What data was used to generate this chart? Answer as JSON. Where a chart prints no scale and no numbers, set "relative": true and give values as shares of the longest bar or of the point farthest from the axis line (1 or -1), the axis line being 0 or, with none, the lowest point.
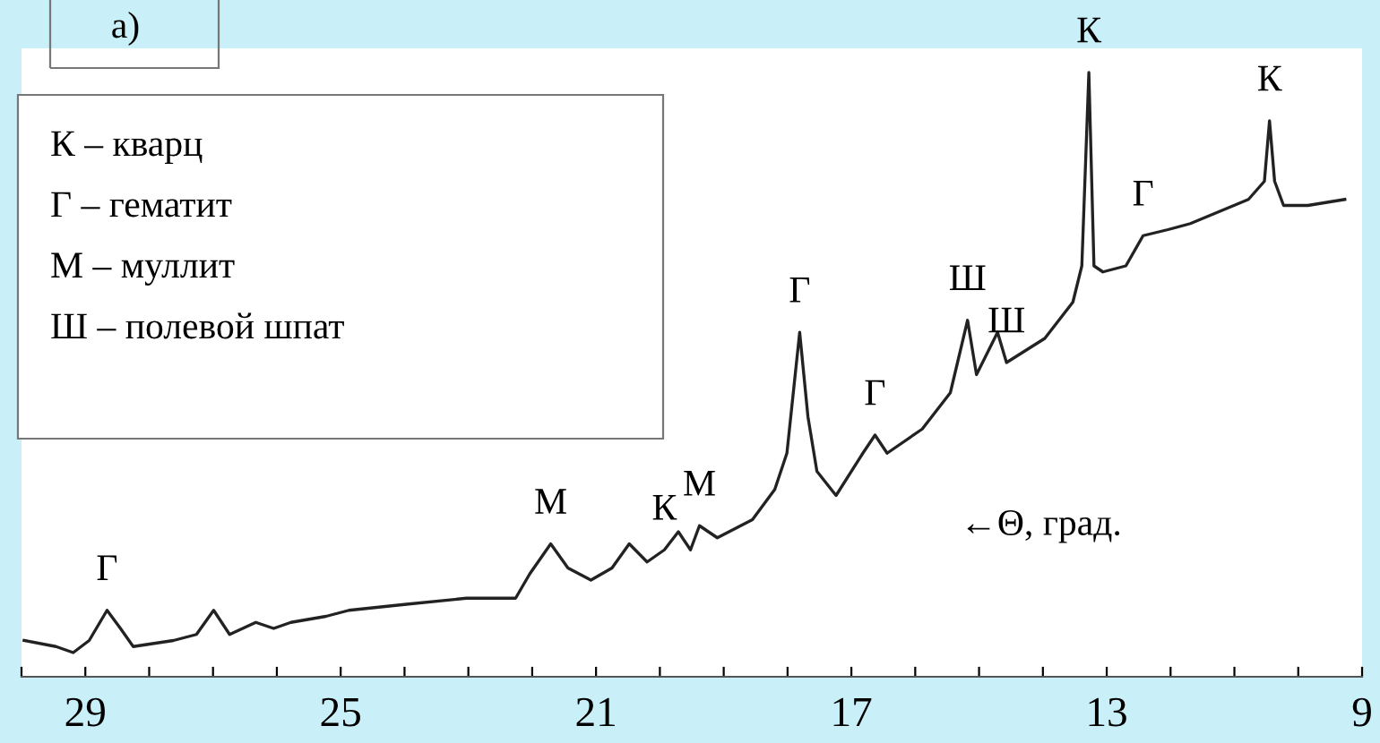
{
  "chart_data": {
    "type": "line",
    "relative": true,
    "xlabel": "←Θ, град.",
    "xlim": [
      30,
      9
    ],
    "xticks": [
      {
        "value": 30,
        "label": null
      },
      29,
      {
        "value": 28,
        "label": null
      },
      {
        "value": 27,
        "label": null
      },
      {
        "value": 26,
        "label": null
      },
      25,
      {
        "value": 24,
        "label": null
      },
      {
        "value": 23,
        "label": null
      },
      {
        "value": 22,
        "label": null
      },
      21,
      {
        "value": 20,
        "label": null
      },
      {
        "value": 19,
        "label": null
      },
      {
        "value": 18,
        "label": null
      },
      17,
      {
        "value": 16,
        "label": null
      },
      {
        "value": 15,
        "label": null
      },
      {
        "value": 14,
        "label": null
      },
      13,
      {
        "value": 12,
        "label": null
      },
      {
        "value": 11,
        "label": null
      },
      {
        "value": 10,
        "label": null
      },
      9
    ],
    "grid": false,
    "legend": false,
    "marker": "none",
    "line_style": "solid",
    "tick_labels": "x",
    "series": [
      {
        "color": "#222222",
        "x": [
          29.96,
          29.46,
          29.19,
          28.94,
          28.66,
          28.45,
          28.25,
          27.62,
          27.26,
          26.99,
          26.74,
          26.33,
          26.05,
          25.78,
          25.23,
          24.87,
          23.97,
          23.03,
          22.26,
          22.04,
          21.71,
          21.44,
          21.08,
          20.75,
          20.48,
          20.2,
          19.93,
          19.71,
          19.52,
          19.38,
          19.1,
          18.55,
          18.2,
          18.01,
          17.81,
          17.68,
          17.54,
          17.24,
          16.82,
          16.63,
          16.44,
          15.89,
          15.45,
          15.18,
          15.04,
          14.71,
          14.57,
          13.97,
          13.53,
          13.39,
          13.28,
          13.2,
          13.06,
          12.7,
          12.43,
          12.04,
          11.69,
          10.78,
          10.53,
          10.45,
          10.37,
          10.23,
          9.85,
          9.27
        ],
        "values": [
          0.06,
          0.05,
          0.04,
          0.06,
          0.11,
          0.08,
          0.05,
          0.06,
          0.07,
          0.11,
          0.07,
          0.09,
          0.08,
          0.09,
          0.1,
          0.11,
          0.12,
          0.13,
          0.13,
          0.17,
          0.22,
          0.18,
          0.16,
          0.18,
          0.22,
          0.19,
          0.21,
          0.24,
          0.21,
          0.25,
          0.23,
          0.26,
          0.31,
          0.37,
          0.57,
          0.43,
          0.34,
          0.3,
          0.37,
          0.4,
          0.37,
          0.41,
          0.47,
          0.59,
          0.5,
          0.57,
          0.52,
          0.56,
          0.62,
          0.68,
          1.0,
          0.68,
          0.67,
          0.68,
          0.73,
          0.74,
          0.75,
          0.79,
          0.82,
          0.92,
          0.82,
          0.78,
          0.78,
          0.79
        ]
      }
    ],
    "annotations": [
      "а)",
      "К – кварц",
      "Г – гематит",
      "М – муллит",
      "Ш – полевой шпат",
      {
        "text": "Г",
        "x": 28.66,
        "y": 0.11
      },
      {
        "text": "М",
        "x": 21.71,
        "y": 0.22
      },
      {
        "text": "К",
        "x": 19.93,
        "y": 0.21
      },
      {
        "text": "М",
        "x": 19.38,
        "y": 0.25
      },
      {
        "text": "Г",
        "x": 17.81,
        "y": 0.57
      },
      {
        "text": "Г",
        "x": 16.63,
        "y": 0.4
      },
      {
        "text": "Ш",
        "x": 15.18,
        "y": 0.59
      },
      {
        "text": "Ш",
        "x": 14.57,
        "y": 0.52
      },
      {
        "text": "К",
        "x": 13.28,
        "y": 1.0
      },
      {
        "text": "Г",
        "x": 12.43,
        "y": 0.73
      },
      {
        "text": "К",
        "x": 10.45,
        "y": 0.92
      }
    ]
  }
}
